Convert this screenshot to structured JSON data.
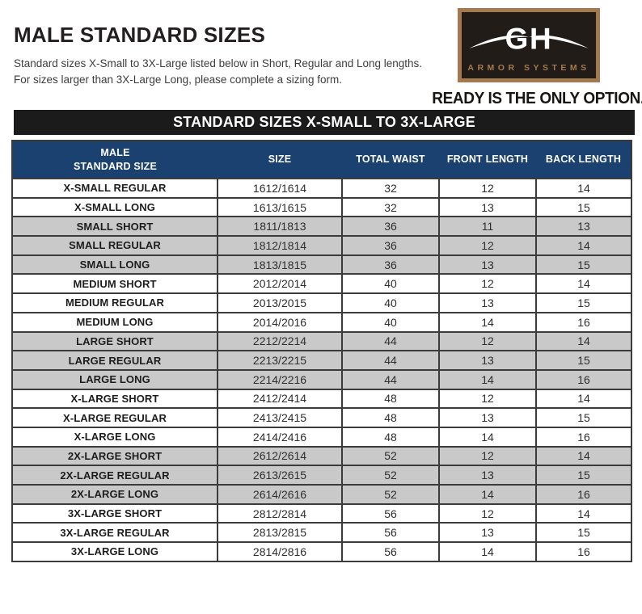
{
  "page": {
    "title": "MALE STANDARD SIZES",
    "subtitle_line1": "Standard sizes X-Small to 3X-Large listed below in Short, Regular and Long lengths.",
    "subtitle_line2": "For sizes larger than 3X-Large Long, please complete a sizing form.",
    "tagline": "READY IS THE ONLY OPTION."
  },
  "logo": {
    "brand_initials": "GH",
    "brand_name": "ARMOR SYSTEMS"
  },
  "banner": {
    "label": "STANDARD SIZES X-SMALL TO 3X-LARGE"
  },
  "colors": {
    "header_navy": "#1a4170",
    "banner_black": "#1b1b1b",
    "row_gray": "#c9c9c9",
    "border_dark": "#3b3b3b",
    "logo_bronze": "#a5794f",
    "logo_panel": "#211c18"
  },
  "table": {
    "columns": [
      "MALE\nSTANDARD SIZE",
      "SIZE",
      "TOTAL WAIST",
      "FRONT LENGTH",
      "BACK LENGTH"
    ],
    "rows": [
      {
        "label": "X-SMALL REGULAR",
        "size": "1612/1614",
        "total_waist": "32",
        "front_length": "12",
        "back_length": "14",
        "shaded": false
      },
      {
        "label": "X-SMALL LONG",
        "size": "1613/1615",
        "total_waist": "32",
        "front_length": "13",
        "back_length": "15",
        "shaded": false
      },
      {
        "label": "SMALL SHORT",
        "size": "1811/1813",
        "total_waist": "36",
        "front_length": "11",
        "back_length": "13",
        "shaded": true
      },
      {
        "label": "SMALL REGULAR",
        "size": "1812/1814",
        "total_waist": "36",
        "front_length": "12",
        "back_length": "14",
        "shaded": true
      },
      {
        "label": "SMALL LONG",
        "size": "1813/1815",
        "total_waist": "36",
        "front_length": "13",
        "back_length": "15",
        "shaded": true
      },
      {
        "label": "MEDIUM SHORT",
        "size": "2012/2014",
        "total_waist": "40",
        "front_length": "12",
        "back_length": "14",
        "shaded": false
      },
      {
        "label": "MEDIUM REGULAR",
        "size": "2013/2015",
        "total_waist": "40",
        "front_length": "13",
        "back_length": "15",
        "shaded": false
      },
      {
        "label": "MEDIUM LONG",
        "size": "2014/2016",
        "total_waist": "40",
        "front_length": "14",
        "back_length": "16",
        "shaded": false
      },
      {
        "label": "LARGE SHORT",
        "size": "2212/2214",
        "total_waist": "44",
        "front_length": "12",
        "back_length": "14",
        "shaded": true
      },
      {
        "label": "LARGE REGULAR",
        "size": "2213/2215",
        "total_waist": "44",
        "front_length": "13",
        "back_length": "15",
        "shaded": true
      },
      {
        "label": "LARGE LONG",
        "size": "2214/2216",
        "total_waist": "44",
        "front_length": "14",
        "back_length": "16",
        "shaded": true
      },
      {
        "label": "X-LARGE SHORT",
        "size": "2412/2414",
        "total_waist": "48",
        "front_length": "12",
        "back_length": "14",
        "shaded": false
      },
      {
        "label": "X-LARGE REGULAR",
        "size": "2413/2415",
        "total_waist": "48",
        "front_length": "13",
        "back_length": "15",
        "shaded": false
      },
      {
        "label": "X-LARGE LONG",
        "size": "2414/2416",
        "total_waist": "48",
        "front_length": "14",
        "back_length": "16",
        "shaded": false
      },
      {
        "label": "2X-LARGE SHORT",
        "size": "2612/2614",
        "total_waist": "52",
        "front_length": "12",
        "back_length": "14",
        "shaded": true
      },
      {
        "label": "2X-LARGE REGULAR",
        "size": "2613/2615",
        "total_waist": "52",
        "front_length": "13",
        "back_length": "15",
        "shaded": true
      },
      {
        "label": "2X-LARGE LONG",
        "size": "2614/2616",
        "total_waist": "52",
        "front_length": "14",
        "back_length": "16",
        "shaded": true
      },
      {
        "label": "3X-LARGE SHORT",
        "size": "2812/2814",
        "total_waist": "56",
        "front_length": "12",
        "back_length": "14",
        "shaded": false
      },
      {
        "label": "3X-LARGE REGULAR",
        "size": "2813/2815",
        "total_waist": "56",
        "front_length": "13",
        "back_length": "15",
        "shaded": false
      },
      {
        "label": "3X-LARGE LONG",
        "size": "2814/2816",
        "total_waist": "56",
        "front_length": "14",
        "back_length": "16",
        "shaded": false
      }
    ]
  }
}
